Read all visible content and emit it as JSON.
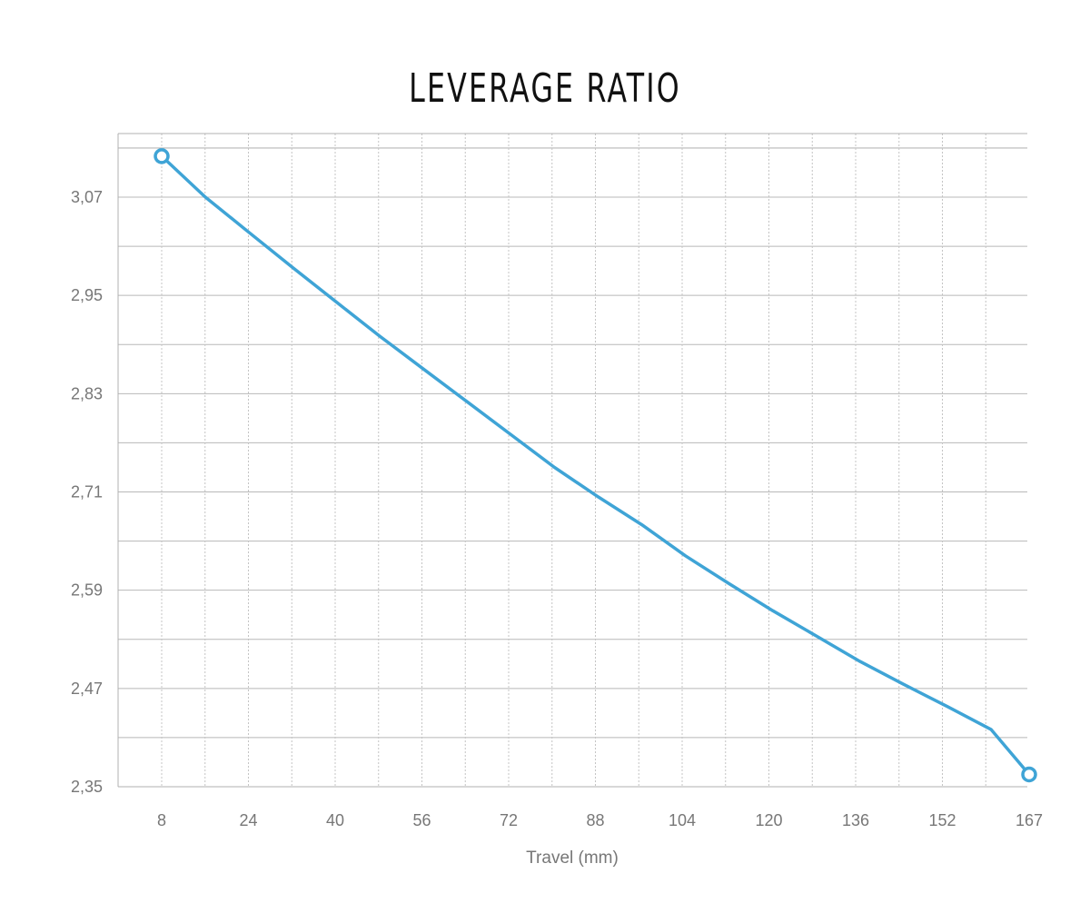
{
  "chart_data": {
    "type": "line",
    "title": "LEVERAGE RATIO",
    "xlabel": "Travel (mm)",
    "ylabel": "",
    "x_ticks": [
      8,
      24,
      40,
      56,
      72,
      88,
      104,
      120,
      136,
      152,
      167
    ],
    "y_ticks": [
      "3,07",
      "2,95",
      "2,83",
      "2,71",
      "2,59",
      "2,47",
      "2,35"
    ],
    "y_tick_values": [
      3.07,
      2.95,
      2.83,
      2.71,
      2.59,
      2.47,
      2.35
    ],
    "xlim": [
      0,
      167
    ],
    "ylim": [
      2.35,
      3.15
    ],
    "grid": true,
    "line_color": "#3fa4d6",
    "series": [
      {
        "x": [
          8,
          16,
          24,
          32,
          40,
          48,
          56,
          64,
          72,
          80,
          88,
          96,
          104,
          112,
          120,
          128,
          136,
          144,
          152,
          160,
          167
        ],
        "values": [
          3.12,
          3.07,
          3.027,
          2.984,
          2.942,
          2.9,
          2.86,
          2.82,
          2.78,
          2.74,
          2.704,
          2.67,
          2.632,
          2.598,
          2.565,
          2.534,
          2.503,
          2.475,
          2.448,
          2.42,
          2.365
        ]
      }
    ],
    "endpoints": [
      {
        "x": 8,
        "y": 3.12
      },
      {
        "x": 167,
        "y": 2.365
      }
    ]
  }
}
